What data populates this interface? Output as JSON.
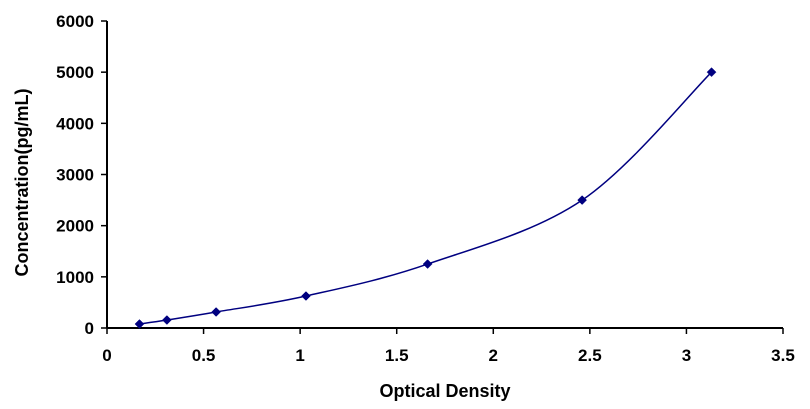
{
  "chart_data": {
    "type": "scatter",
    "title": "",
    "xlabel": "Optical Density",
    "ylabel": "Concentration(pg/mL)",
    "xlim": [
      0,
      3.5
    ],
    "ylim": [
      0,
      6000
    ],
    "x_ticks": [
      "0",
      "0.5",
      "1",
      "1.5",
      "2",
      "2.5",
      "3",
      "3.5"
    ],
    "y_ticks": [
      "0",
      "1000",
      "2000",
      "3000",
      "4000",
      "5000",
      "6000"
    ],
    "grid": false,
    "legend": "none",
    "smooth_line": true,
    "marker": "diamond",
    "series": [
      {
        "color": "#000080",
        "points": [
          {
            "x": 0.168,
            "y": 78
          },
          {
            "x": 0.31,
            "y": 156
          },
          {
            "x": 0.565,
            "y": 313
          },
          {
            "x": 1.03,
            "y": 625
          },
          {
            "x": 1.66,
            "y": 1250
          },
          {
            "x": 2.46,
            "y": 2500
          },
          {
            "x": 3.13,
            "y": 5000
          }
        ]
      }
    ]
  }
}
